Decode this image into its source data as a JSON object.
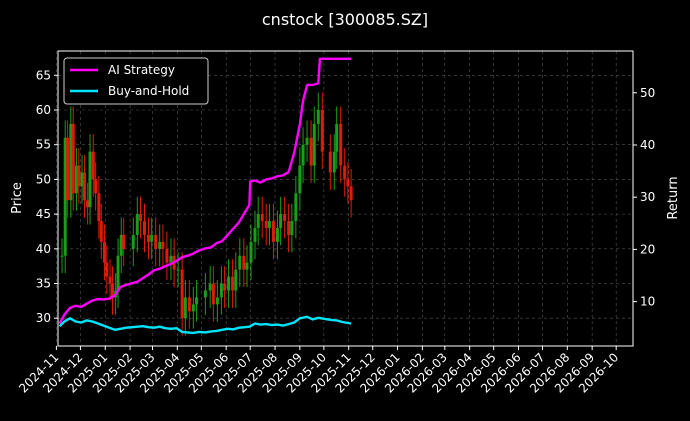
{
  "chart_data": {
    "type": "line",
    "title": "cnstock [300085.SZ]",
    "ylabel": "Price",
    "y2label": "Return",
    "ylim": [
      26,
      68.5
    ],
    "y2lim": [
      1.5,
      58
    ],
    "yticks": [
      30,
      35,
      40,
      45,
      50,
      55,
      60,
      65
    ],
    "y2ticks": [
      10,
      20,
      30,
      40,
      50
    ],
    "xticks": [
      "2024-11",
      "2024-12",
      "2025-01",
      "2025-02",
      "2025-03",
      "2025-04",
      "2025-05",
      "2025-06",
      "2025-07",
      "2025-08",
      "2025-09",
      "2025-10",
      "2025-11",
      "2025-12",
      "2026-01",
      "2026-02",
      "2026-03",
      "2026-04",
      "2026-05",
      "2026-06",
      "2026-07",
      "2026-08",
      "2026-09",
      "2026-10"
    ],
    "xlim": [
      "2024-11-03",
      "2026-10-22"
    ],
    "grid": true,
    "legend_position": "top-left",
    "background": "#000000",
    "candle_up_color": "#1a9e1a",
    "candle_down_color": "#e01b0b",
    "price_close": [
      [
        "2024-11-08",
        39
      ],
      [
        "2024-11-12",
        56
      ],
      [
        "2024-11-15",
        47
      ],
      [
        "2024-11-19",
        58
      ],
      [
        "2024-11-22",
        48
      ],
      [
        "2024-11-26",
        52
      ],
      [
        "2024-11-29",
        49
      ],
      [
        "2024-12-03",
        51
      ],
      [
        "2024-12-06",
        47
      ],
      [
        "2024-12-10",
        46
      ],
      [
        "2024-12-13",
        54
      ],
      [
        "2024-12-17",
        50
      ],
      [
        "2024-12-20",
        48
      ],
      [
        "2024-12-24",
        44
      ],
      [
        "2024-12-27",
        41
      ],
      [
        "2024-12-31",
        38
      ],
      [
        "2025-01-03",
        36
      ],
      [
        "2025-01-07",
        35
      ],
      [
        "2025-01-10",
        33
      ],
      [
        "2025-01-14",
        34
      ],
      [
        "2025-01-17",
        39
      ],
      [
        "2025-01-21",
        42
      ],
      [
        "2025-01-24",
        40
      ],
      [
        "2025-02-05",
        42
      ],
      [
        "2025-02-10",
        45
      ],
      [
        "2025-02-14",
        44
      ],
      [
        "2025-02-19",
        42
      ],
      [
        "2025-02-24",
        41
      ],
      [
        "2025-02-28",
        42
      ],
      [
        "2025-03-05",
        40
      ],
      [
        "2025-03-10",
        41
      ],
      [
        "2025-03-14",
        40
      ],
      [
        "2025-03-19",
        38
      ],
      [
        "2025-03-24",
        39
      ],
      [
        "2025-03-28",
        37
      ],
      [
        "2025-04-02",
        37
      ],
      [
        "2025-04-07",
        30
      ],
      [
        "2025-04-11",
        33
      ],
      [
        "2025-04-16",
        31
      ],
      [
        "2025-04-21",
        32
      ],
      [
        "2025-04-25",
        33
      ],
      [
        "2025-05-06",
        34
      ],
      [
        "2025-05-12",
        35
      ],
      [
        "2025-05-16",
        32
      ],
      [
        "2025-05-21",
        33
      ],
      [
        "2025-05-26",
        35
      ],
      [
        "2025-05-30",
        34
      ],
      [
        "2025-06-04",
        36
      ],
      [
        "2025-06-09",
        34
      ],
      [
        "2025-06-13",
        37
      ],
      [
        "2025-06-18",
        39
      ],
      [
        "2025-06-23",
        37
      ],
      [
        "2025-06-27",
        38
      ],
      [
        "2025-07-02",
        41
      ],
      [
        "2025-07-07",
        43
      ],
      [
        "2025-07-11",
        45
      ],
      [
        "2025-07-16",
        44
      ],
      [
        "2025-07-21",
        43
      ],
      [
        "2025-07-25",
        44
      ],
      [
        "2025-07-30",
        41
      ],
      [
        "2025-08-04",
        43
      ],
      [
        "2025-08-08",
        45
      ],
      [
        "2025-08-13",
        44
      ],
      [
        "2025-08-18",
        42
      ],
      [
        "2025-08-22",
        44
      ],
      [
        "2025-08-27",
        48
      ],
      [
        "2025-09-01",
        52
      ],
      [
        "2025-09-05",
        55
      ],
      [
        "2025-09-10",
        56
      ],
      [
        "2025-09-15",
        52
      ],
      [
        "2025-09-19",
        58
      ],
      [
        "2025-09-24",
        60
      ],
      [
        "2025-09-29",
        54
      ],
      [
        "2025-10-09",
        51
      ],
      [
        "2025-10-14",
        54
      ],
      [
        "2025-10-17",
        58
      ],
      [
        "2025-10-22",
        52
      ],
      [
        "2025-10-27",
        50
      ],
      [
        "2025-10-31",
        49
      ],
      [
        "2025-11-04",
        47
      ]
    ],
    "series": [
      {
        "name": "AI Strategy",
        "color": "#ff00ff",
        "axis": "right",
        "values": [
          [
            "2024-11-05",
            5.8
          ],
          [
            "2024-11-11",
            7.5
          ],
          [
            "2024-11-18",
            8.8
          ],
          [
            "2024-11-25",
            9.2
          ],
          [
            "2024-12-02",
            9.0
          ],
          [
            "2024-12-09",
            9.6
          ],
          [
            "2024-12-16",
            10.2
          ],
          [
            "2024-12-23",
            10.5
          ],
          [
            "2024-12-30",
            10.4
          ],
          [
            "2025-01-06",
            10.6
          ],
          [
            "2025-01-13",
            11.2
          ],
          [
            "2025-01-20",
            12.8
          ],
          [
            "2025-01-27",
            13.2
          ],
          [
            "2025-02-10",
            13.8
          ],
          [
            "2025-02-17",
            14.5
          ],
          [
            "2025-02-24",
            15.2
          ],
          [
            "2025-03-03",
            16.0
          ],
          [
            "2025-03-10",
            16.3
          ],
          [
            "2025-03-17",
            16.8
          ],
          [
            "2025-03-24",
            17.2
          ],
          [
            "2025-03-31",
            17.8
          ],
          [
            "2025-04-07",
            18.5
          ],
          [
            "2025-04-14",
            18.8
          ],
          [
            "2025-04-21",
            19.2
          ],
          [
            "2025-04-28",
            19.8
          ],
          [
            "2025-05-06",
            20.2
          ],
          [
            "2025-05-13",
            20.4
          ],
          [
            "2025-05-20",
            21.2
          ],
          [
            "2025-05-27",
            21.6
          ],
          [
            "2025-06-03",
            22.8
          ],
          [
            "2025-06-10",
            24.0
          ],
          [
            "2025-06-17",
            25.2
          ],
          [
            "2025-06-24",
            27.0
          ],
          [
            "2025-06-30",
            28.5
          ],
          [
            "2025-07-01",
            33.0
          ],
          [
            "2025-07-07",
            33.2
          ],
          [
            "2025-07-14",
            32.8
          ],
          [
            "2025-07-21",
            33.4
          ],
          [
            "2025-07-28",
            33.6
          ],
          [
            "2025-08-04",
            34.0
          ],
          [
            "2025-08-11",
            34.2
          ],
          [
            "2025-08-18",
            34.8
          ],
          [
            "2025-08-25",
            38.5
          ],
          [
            "2025-09-01",
            44.0
          ],
          [
            "2025-09-05",
            48.5
          ],
          [
            "2025-09-10",
            51.5
          ],
          [
            "2025-09-17",
            51.5
          ],
          [
            "2025-09-24",
            51.8
          ],
          [
            "2025-09-26",
            56.5
          ],
          [
            "2025-10-10",
            56.5
          ],
          [
            "2025-10-24",
            56.5
          ],
          [
            "2025-11-04",
            56.5
          ]
        ]
      },
      {
        "name": "Buy-and-Hold",
        "color": "#00e5ff",
        "axis": "right",
        "values": [
          [
            "2024-11-05",
            5.3
          ],
          [
            "2024-11-11",
            6.2
          ],
          [
            "2024-11-18",
            6.8
          ],
          [
            "2024-11-25",
            6.2
          ],
          [
            "2024-12-02",
            6.0
          ],
          [
            "2024-12-09",
            6.4
          ],
          [
            "2024-12-16",
            6.2
          ],
          [
            "2024-12-23",
            5.8
          ],
          [
            "2024-12-30",
            5.4
          ],
          [
            "2025-01-06",
            5.0
          ],
          [
            "2025-01-13",
            4.6
          ],
          [
            "2025-01-20",
            4.8
          ],
          [
            "2025-01-27",
            5.0
          ],
          [
            "2025-02-10",
            5.2
          ],
          [
            "2025-02-17",
            5.3
          ],
          [
            "2025-02-24",
            5.1
          ],
          [
            "2025-03-03",
            5.0
          ],
          [
            "2025-03-10",
            5.2
          ],
          [
            "2025-03-17",
            4.9
          ],
          [
            "2025-03-24",
            4.8
          ],
          [
            "2025-03-31",
            4.9
          ],
          [
            "2025-04-07",
            4.2
          ],
          [
            "2025-04-14",
            4.1
          ],
          [
            "2025-04-21",
            4.0
          ],
          [
            "2025-04-28",
            4.2
          ],
          [
            "2025-05-06",
            4.1
          ],
          [
            "2025-05-13",
            4.3
          ],
          [
            "2025-05-20",
            4.4
          ],
          [
            "2025-05-27",
            4.6
          ],
          [
            "2025-06-03",
            4.8
          ],
          [
            "2025-06-10",
            4.7
          ],
          [
            "2025-06-17",
            5.0
          ],
          [
            "2025-06-24",
            5.1
          ],
          [
            "2025-06-30",
            5.2
          ],
          [
            "2025-07-07",
            5.8
          ],
          [
            "2025-07-14",
            5.6
          ],
          [
            "2025-07-21",
            5.7
          ],
          [
            "2025-07-28",
            5.5
          ],
          [
            "2025-08-04",
            5.6
          ],
          [
            "2025-08-11",
            5.4
          ],
          [
            "2025-08-18",
            5.7
          ],
          [
            "2025-08-25",
            6.0
          ],
          [
            "2025-09-01",
            6.8
          ],
          [
            "2025-09-10",
            7.1
          ],
          [
            "2025-09-17",
            6.6
          ],
          [
            "2025-09-24",
            6.9
          ],
          [
            "2025-10-01",
            6.7
          ],
          [
            "2025-10-10",
            6.5
          ],
          [
            "2025-10-17",
            6.4
          ],
          [
            "2025-10-24",
            6.1
          ],
          [
            "2025-11-04",
            5.8
          ]
        ]
      }
    ]
  }
}
